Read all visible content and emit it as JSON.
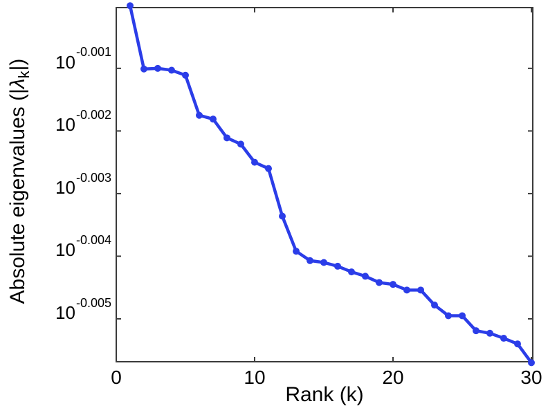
{
  "figure": {
    "background": "#ffffff",
    "xlabel": "Rank (k)",
    "ylabel_prefix": "Absolute eigenvalues (|",
    "ylabel_symbol": "λ",
    "ylabel_subscript": "k",
    "ylabel_suffix": "|)"
  },
  "chart_data": {
    "type": "line",
    "title": "",
    "xlabel": "Rank (k)",
    "ylabel": "Absolute eigenvalues (|lambda_k|)",
    "y_axis_scale": "log10, values shown as 10^exponent",
    "x": [
      1,
      2,
      3,
      4,
      5,
      6,
      7,
      8,
      9,
      10,
      11,
      12,
      13,
      14,
      15,
      16,
      17,
      18,
      19,
      20,
      21,
      22,
      23,
      24,
      25,
      26,
      27,
      28,
      29,
      30
    ],
    "y_log10_exponents": [
      0.0,
      -0.00101,
      -0.001,
      -0.00103,
      -0.00111,
      -0.00175,
      -0.00181,
      -0.00211,
      -0.00221,
      -0.0025,
      -0.0026,
      -0.00336,
      -0.00392,
      -0.00407,
      -0.0041,
      -0.00416,
      -0.00425,
      -0.00432,
      -0.00442,
      -0.00445,
      -0.00454,
      -0.00454,
      -0.00478,
      -0.00495,
      -0.00495,
      -0.00519,
      -0.00523,
      -0.00531,
      -0.0054,
      -0.0057
    ],
    "x_ticks": [
      0,
      10,
      20,
      30
    ],
    "y_ticks": [
      {
        "base": "10",
        "exponent_label": "-0.001",
        "exponent": -0.001
      },
      {
        "base": "10",
        "exponent_label": "-0.002",
        "exponent": -0.002
      },
      {
        "base": "10",
        "exponent_label": "-0.003",
        "exponent": -0.003
      },
      {
        "base": "10",
        "exponent_label": "-0.004",
        "exponent": -0.004
      },
      {
        "base": "10",
        "exponent_label": "-0.005",
        "exponent": -0.005
      }
    ],
    "xlim": [
      0,
      30.1
    ],
    "ylim_exponents": [
      -0.005685,
      -3e-05
    ],
    "grid": false,
    "legend": "none",
    "marker": "circle",
    "line_color": "#2B3DE8",
    "axis_color": "#3a3a3a",
    "text_color": "#000000"
  }
}
